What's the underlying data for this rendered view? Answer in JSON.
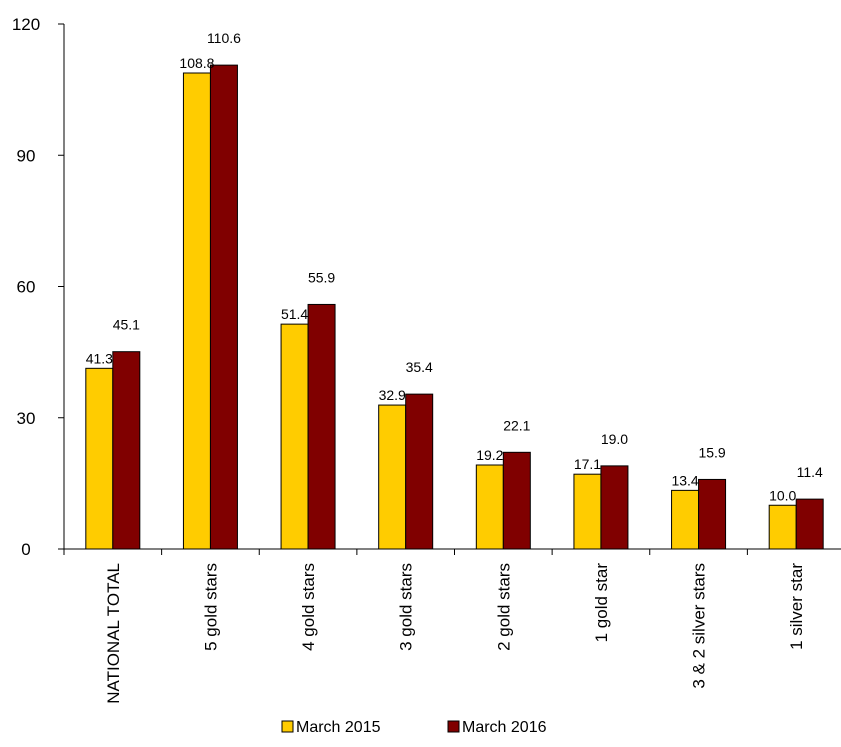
{
  "chart_data": {
    "type": "bar",
    "title": "",
    "xlabel": "",
    "ylabel": "",
    "ylim": [
      0,
      120
    ],
    "yticks": [
      0,
      30,
      60,
      90,
      120
    ],
    "grid": false,
    "legend_position": "bottom",
    "categories": [
      "NATIONAL TOTAL",
      "5 gold stars",
      "4 gold stars",
      "3 gold stars",
      "2 gold stars",
      "1 gold star",
      "3 & 2 silver stars",
      "1 silver star"
    ],
    "series": [
      {
        "name": "March 2015",
        "color": "#FFCC00",
        "values": [
          41.3,
          108.8,
          51.4,
          32.9,
          19.2,
          17.1,
          13.4,
          10.0
        ],
        "labels": [
          "41.3",
          "108.8",
          "51.4",
          "32.9",
          "19.2",
          "17.1",
          "13.4",
          "10.0"
        ]
      },
      {
        "name": "March 2016",
        "color": "#800000",
        "values": [
          45.1,
          110.6,
          55.9,
          35.4,
          22.1,
          19.0,
          15.9,
          11.4
        ],
        "labels": [
          "45.1",
          "110.6",
          "55.9",
          "35.4",
          "22.1",
          "19.0",
          "15.9",
          "11.4"
        ]
      }
    ]
  }
}
